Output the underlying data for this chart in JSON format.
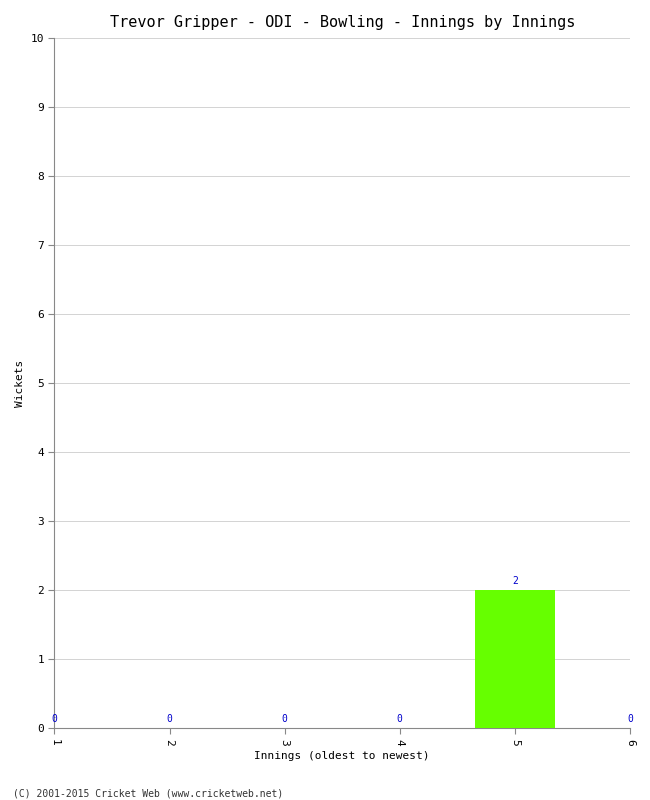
{
  "title": "Trevor Gripper - ODI - Bowling - Innings by Innings",
  "xlabel": "Innings (oldest to newest)",
  "ylabel": "Wickets",
  "categories": [
    1,
    2,
    3,
    4,
    5,
    6
  ],
  "values": [
    0,
    0,
    0,
    0,
    2,
    0
  ],
  "nonzero_bar_color": "#66ff00",
  "ylim": [
    0,
    10
  ],
  "yticks": [
    0,
    1,
    2,
    3,
    4,
    5,
    6,
    7,
    8,
    9,
    10
  ],
  "annotation_color": "#0000cc",
  "annotation_fontsize": 7,
  "title_fontsize": 11,
  "label_fontsize": 8,
  "tick_fontsize": 8,
  "background_color": "#ffffff",
  "grid_color": "#cccccc",
  "footer": "(C) 2001-2015 Cricket Web (www.cricketweb.net)",
  "footer_fontsize": 7,
  "font_family": "monospace",
  "bar_width": 0.7
}
